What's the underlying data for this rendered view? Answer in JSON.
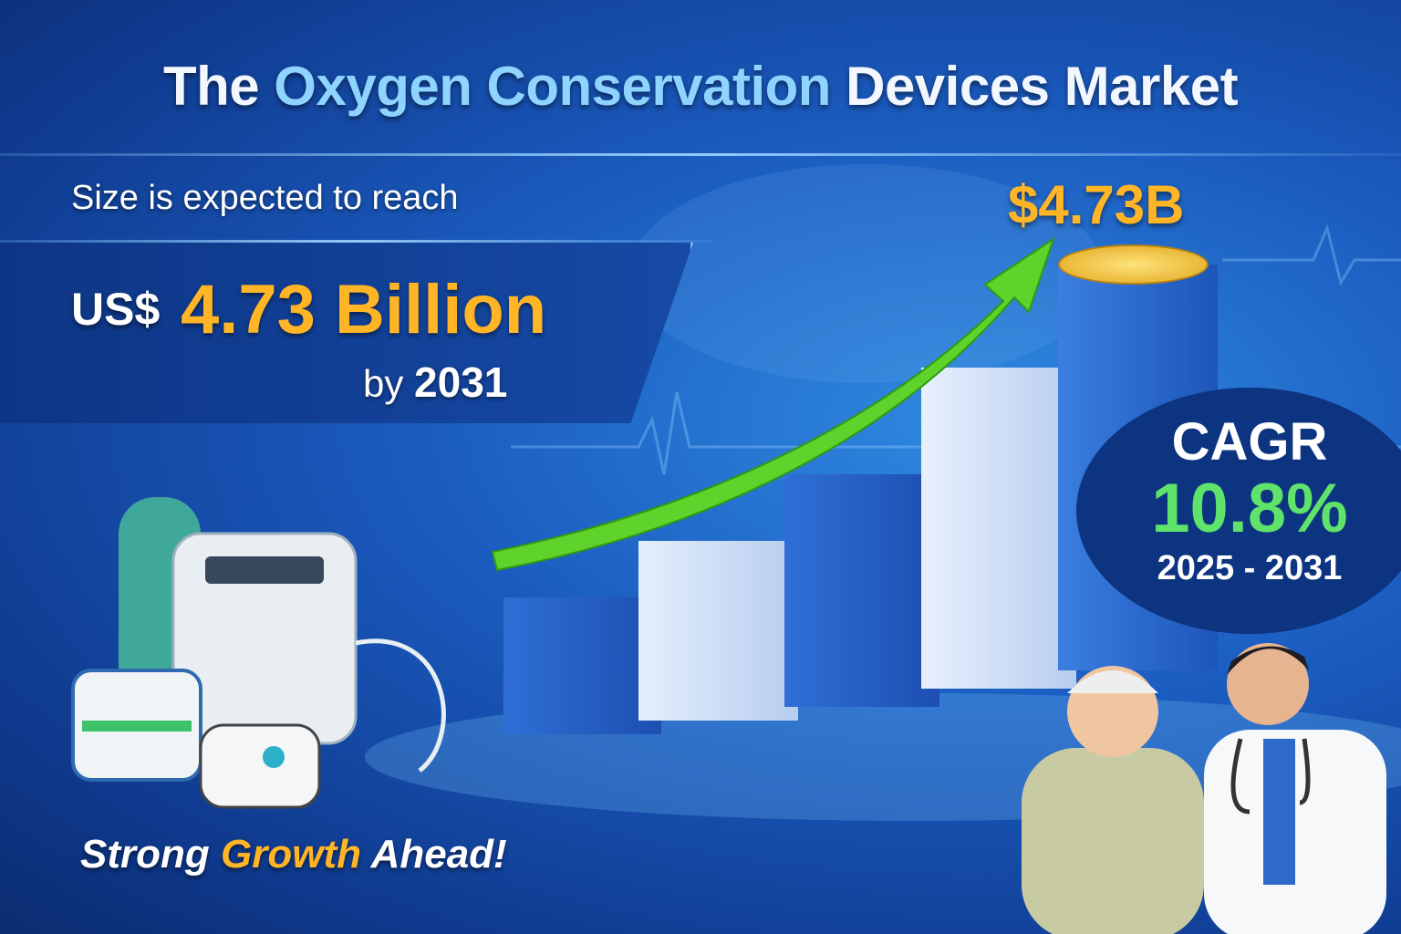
{
  "title": {
    "part1": "The",
    "highlight": "Oxygen Conservation",
    "part2": "Devices Market"
  },
  "subtitle": "Size is expected to reach",
  "market": {
    "currency": "US$",
    "value": "4.73 Billion",
    "by": "by",
    "year": "2031"
  },
  "bar_label": "$4.73B",
  "cagr": {
    "label": "CAGR",
    "value": "10.8%",
    "period": "2025 - 2031"
  },
  "tagline": {
    "part1": "Strong",
    "highlight": "Growth",
    "part2": "Ahead!"
  },
  "colors": {
    "accent_orange": "#ffb526",
    "accent_green": "#5fe36a",
    "background": "#1b5cc0"
  }
}
